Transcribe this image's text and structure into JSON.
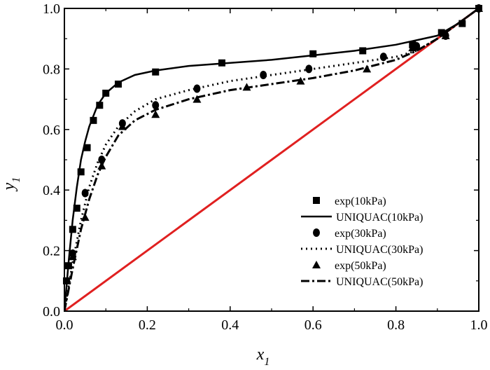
{
  "chart_data": {
    "type": "line",
    "title": "",
    "xlabel": {
      "base": "x",
      "sub": "1"
    },
    "ylabel": {
      "base": "y",
      "sub": "1"
    },
    "xlim": [
      0.0,
      1.0
    ],
    "ylim": [
      0.0,
      1.0
    ],
    "x_ticks": [
      "0.0",
      "0.2",
      "0.4",
      "0.6",
      "0.8",
      "1.0"
    ],
    "y_ticks": [
      "0.0",
      "0.2",
      "0.4",
      "0.6",
      "0.8",
      "1.0"
    ],
    "grid": false,
    "legend_position": "bottom-right",
    "legend_entries": [
      "exp(10kPa)",
      "UNIQUAC(10kPa)",
      "exp(30kPa)",
      "UNIQUAC(30kPa)",
      "exp(50kPa)",
      "UNIQUAC(50kPa)"
    ],
    "diagonal": {
      "color": "#e02020",
      "x": [
        0,
        1
      ],
      "y": [
        0,
        1
      ]
    },
    "series": [
      {
        "name": "exp(10kPa)",
        "kind": "scatter",
        "marker": "square",
        "x": [
          0.005,
          0.01,
          0.02,
          0.03,
          0.04,
          0.055,
          0.07,
          0.085,
          0.1,
          0.13,
          0.22,
          0.38,
          0.6,
          0.72,
          0.84,
          0.91,
          0.96,
          1.0
        ],
        "y": [
          0.1,
          0.15,
          0.27,
          0.34,
          0.46,
          0.54,
          0.63,
          0.68,
          0.72,
          0.75,
          0.79,
          0.82,
          0.85,
          0.86,
          0.88,
          0.92,
          0.95,
          1.0
        ]
      },
      {
        "name": "UNIQUAC(10kPa)",
        "kind": "line",
        "style": "solid",
        "x": [
          0.0,
          0.01,
          0.02,
          0.03,
          0.04,
          0.05,
          0.06,
          0.08,
          0.1,
          0.13,
          0.17,
          0.22,
          0.3,
          0.4,
          0.5,
          0.6,
          0.7,
          0.8,
          0.9,
          0.95,
          1.0
        ],
        "y": [
          0.0,
          0.16,
          0.3,
          0.41,
          0.5,
          0.56,
          0.61,
          0.68,
          0.72,
          0.755,
          0.78,
          0.795,
          0.81,
          0.82,
          0.83,
          0.845,
          0.86,
          0.88,
          0.91,
          0.95,
          1.0
        ]
      },
      {
        "name": "exp(30kPa)",
        "kind": "scatter",
        "marker": "circle",
        "x": [
          0.02,
          0.05,
          0.09,
          0.14,
          0.22,
          0.32,
          0.48,
          0.59,
          0.77,
          0.85,
          0.92,
          1.0
        ],
        "y": [
          0.19,
          0.39,
          0.5,
          0.62,
          0.68,
          0.735,
          0.78,
          0.8,
          0.84,
          0.875,
          0.91,
          1.0
        ]
      },
      {
        "name": "UNIQUAC(30kPa)",
        "kind": "line",
        "style": "dotted",
        "x": [
          0.0,
          0.01,
          0.02,
          0.04,
          0.06,
          0.08,
          0.1,
          0.13,
          0.17,
          0.22,
          0.3,
          0.4,
          0.5,
          0.6,
          0.7,
          0.8,
          0.85,
          0.9,
          0.95,
          1.0
        ],
        "y": [
          0.0,
          0.08,
          0.16,
          0.3,
          0.41,
          0.49,
          0.55,
          0.61,
          0.66,
          0.7,
          0.73,
          0.76,
          0.78,
          0.8,
          0.82,
          0.84,
          0.86,
          0.9,
          0.95,
          1.0
        ]
      },
      {
        "name": "exp(50kPa)",
        "kind": "scatter",
        "marker": "triangle",
        "x": [
          0.02,
          0.05,
          0.09,
          0.14,
          0.22,
          0.32,
          0.44,
          0.57,
          0.73,
          0.84,
          0.92,
          1.0
        ],
        "y": [
          0.18,
          0.31,
          0.48,
          0.61,
          0.65,
          0.7,
          0.74,
          0.76,
          0.8,
          0.87,
          0.91,
          1.0
        ]
      },
      {
        "name": "UNIQUAC(50kPa)",
        "kind": "line",
        "style": "dashdot",
        "x": [
          0.0,
          0.01,
          0.02,
          0.04,
          0.06,
          0.08,
          0.1,
          0.13,
          0.17,
          0.22,
          0.3,
          0.4,
          0.5,
          0.6,
          0.7,
          0.8,
          0.85,
          0.9,
          0.95,
          1.0
        ],
        "y": [
          0.0,
          0.07,
          0.14,
          0.27,
          0.37,
          0.45,
          0.51,
          0.58,
          0.63,
          0.665,
          0.7,
          0.73,
          0.75,
          0.77,
          0.795,
          0.83,
          0.86,
          0.9,
          0.95,
          1.0
        ]
      }
    ]
  }
}
